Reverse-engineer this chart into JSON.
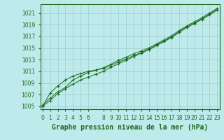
{
  "title": "Graphe pression niveau de la mer (hPa)",
  "xlabel_hours": [
    0,
    1,
    2,
    3,
    4,
    5,
    6,
    8,
    9,
    10,
    11,
    12,
    13,
    14,
    15,
    16,
    17,
    18,
    19,
    20,
    21,
    22,
    23
  ],
  "x_all": [
    0,
    1,
    2,
    3,
    4,
    5,
    6,
    7,
    8,
    9,
    10,
    11,
    12,
    13,
    14,
    15,
    16,
    17,
    18,
    19,
    20,
    21,
    22,
    23
  ],
  "line1": [
    1005.2,
    1006.4,
    1007.5,
    1008.2,
    1009.5,
    1010.2,
    1010.8,
    1011.2,
    1011.6,
    1012.2,
    1012.9,
    1013.4,
    1014.0,
    1014.5,
    1015.0,
    1015.7,
    1016.4,
    1017.1,
    1018.0,
    1018.8,
    1019.5,
    1020.2,
    1021.0,
    1021.8
  ],
  "line2": [
    1005.0,
    1006.0,
    1007.2,
    1008.0,
    1008.8,
    1009.5,
    1010.0,
    1010.5,
    1011.0,
    1011.7,
    1012.3,
    1012.9,
    1013.5,
    1014.1,
    1014.7,
    1015.4,
    1016.1,
    1016.8,
    1017.7,
    1018.5,
    1019.2,
    1019.9,
    1020.7,
    1021.5
  ],
  "line3": [
    1005.0,
    1007.3,
    1008.5,
    1009.5,
    1010.2,
    1010.6,
    1011.0,
    1011.2,
    1011.5,
    1012.0,
    1012.6,
    1013.1,
    1013.7,
    1014.2,
    1014.8,
    1015.5,
    1016.2,
    1016.9,
    1017.8,
    1018.6,
    1019.3,
    1020.0,
    1020.8,
    1021.6
  ],
  "ylim": [
    1004.5,
    1022.5
  ],
  "yticks": [
    1005,
    1007,
    1009,
    1011,
    1013,
    1015,
    1017,
    1019,
    1021
  ],
  "xlim": [
    -0.3,
    23.3
  ],
  "line_color": "#1a6b1a",
  "bg_color": "#beeaec",
  "grid_color": "#9ccdd0",
  "label_color": "#1a6b1a",
  "title_fontsize": 7.0,
  "tick_fontsize": 5.5
}
